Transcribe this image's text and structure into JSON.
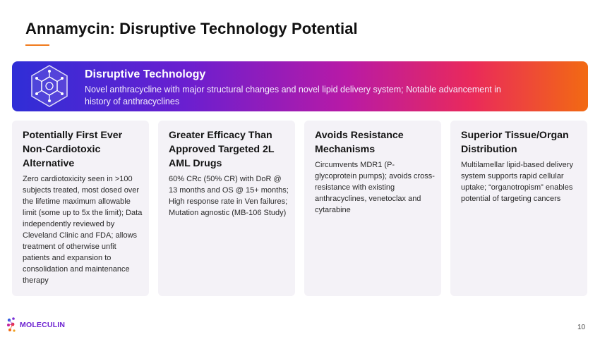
{
  "slide": {
    "title": "Annamycin: Disruptive Technology Potential",
    "page_number": "10"
  },
  "banner": {
    "icon": "molecule-hexagon-icon",
    "title": "Disruptive Technology",
    "description": "Novel anthracycline with major structural changes and novel lipid delivery system; Notable advancement in history of anthracyclines"
  },
  "cards": [
    {
      "title": "Potentially First Ever Non-Cardiotoxic Alternative",
      "text": "Zero cardiotoxicity seen in >100 subjects treated, most dosed over the lifetime maximum allowable limit (some up to 5x the limit); Data independently reviewed by Cleveland Clinic and FDA; allows treatment of otherwise unfit patients and expansion to consolidation and maintenance therapy"
    },
    {
      "title": "Greater Efficacy Than Approved Targeted 2L AML Drugs",
      "text": "60% CRc (50% CR) with DoR @ 13 months and OS @ 15+ months; High response rate in Ven failures; Mutation agnostic (MB-106 Study)"
    },
    {
      "title": "Avoids Resistance Mechanisms",
      "text": "Circumvents MDR1 (P-glycoprotein pumps); avoids cross-resistance with existing anthracyclines, venetoclax and cytarabine"
    },
    {
      "title": "Superior Tissue/Organ Distribution",
      "text": "Multilamellar lipid-based delivery system supports rapid cellular uptake; “organotropism” enables potential of targeting cancers"
    }
  ],
  "logo": {
    "icon": "moleculin-logo-icon",
    "text": "MOLECULIN"
  },
  "colors": {
    "accent_orange": "#f07a1c",
    "gradient_start": "#2f2ed6",
    "gradient_end": "#f26a12",
    "card_bg": "#f4f2f7",
    "logo_purple": "#6b1fd0"
  }
}
